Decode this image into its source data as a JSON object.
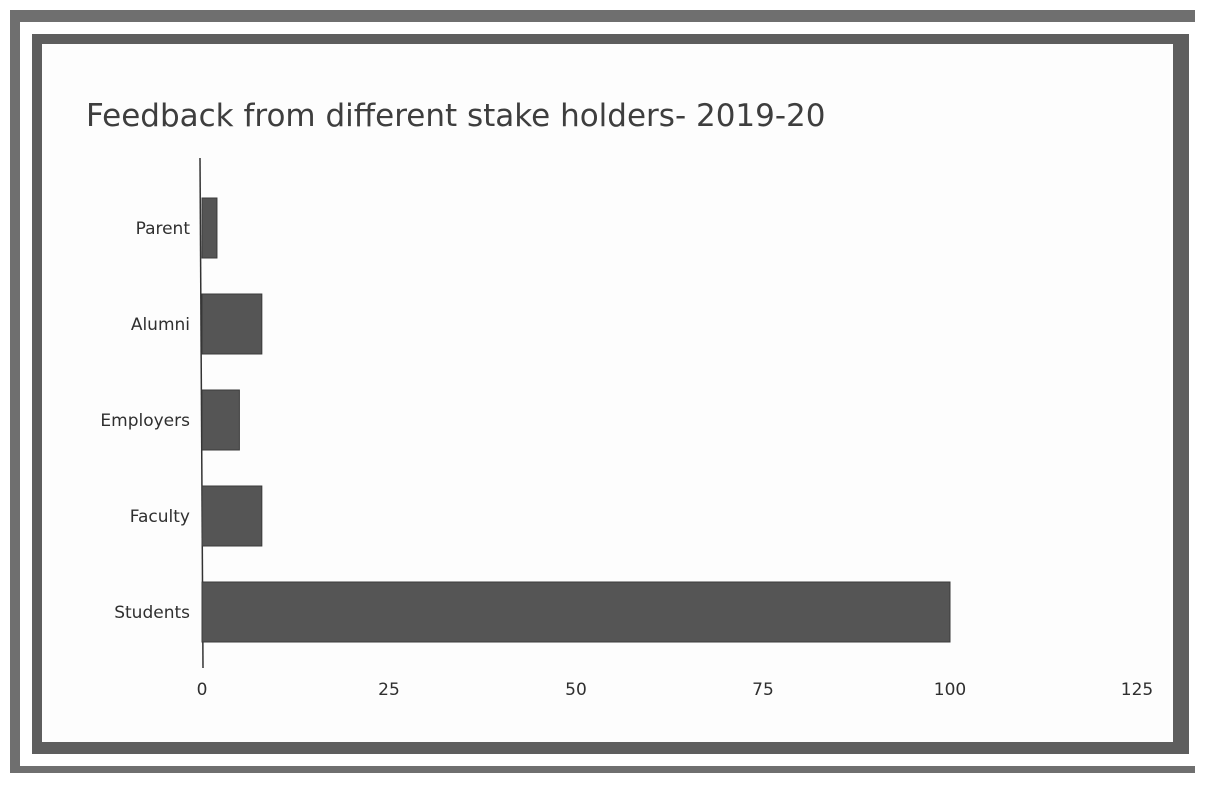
{
  "chart_data": {
    "type": "bar",
    "orientation": "horizontal",
    "title": "Feedback from different stake holders- 2019-20",
    "categories": [
      "Parent",
      "Alumni",
      "Employers",
      "Faculty",
      "Students"
    ],
    "values": [
      2,
      8,
      5,
      8,
      100
    ],
    "x_ticks": [
      "0",
      "25",
      "50",
      "75",
      "100",
      "125"
    ],
    "xlim": [
      0,
      125
    ],
    "xlabel": "",
    "ylabel": "",
    "grid": false,
    "bar_color": "#555555"
  }
}
